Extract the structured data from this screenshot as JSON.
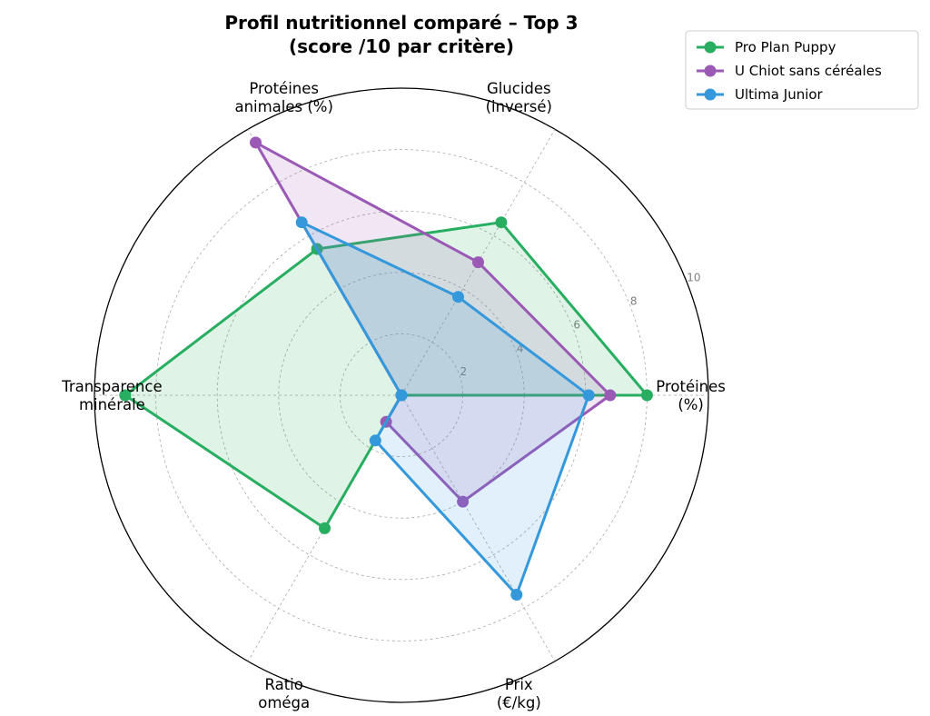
{
  "chart_data": {
    "type": "radar",
    "title_lines": [
      "Profil nutritionnel comparé – Top 3",
      "(score /10 par critère)"
    ],
    "axes": [
      {
        "lines": [
          "Protéines",
          "(%)"
        ]
      },
      {
        "lines": [
          "Glucides",
          "(inversé)"
        ]
      },
      {
        "lines": [
          "Protéines",
          "animales (%)"
        ]
      },
      {
        "lines": [
          "Transparence",
          "minérale"
        ]
      },
      {
        "lines": [
          "Ratio",
          "oméga"
        ]
      },
      {
        "lines": [
          "Prix",
          "(€/kg)"
        ]
      }
    ],
    "rlim": [
      0,
      10
    ],
    "radial_ticks": [
      2,
      4,
      6,
      8,
      10
    ],
    "grid": true,
    "legend_position": "top-right",
    "series": [
      {
        "name": "Pro Plan Puppy",
        "color": "#27ae60",
        "values": [
          8,
          6.5,
          5.5,
          9,
          5,
          0
        ]
      },
      {
        "name": "U Chiot sans céréales",
        "color": "#9b59b6",
        "values": [
          6.8,
          5,
          9.5,
          0,
          1,
          4
        ]
      },
      {
        "name": "Ultima Junior",
        "color": "#3498db",
        "values": [
          6.1,
          3.7,
          6.5,
          0,
          1.7,
          7.5
        ]
      }
    ]
  }
}
